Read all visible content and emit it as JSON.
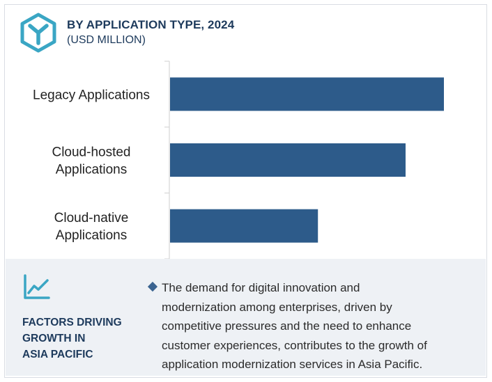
{
  "header": {
    "title": "BY APPLICATION TYPE, 2024",
    "subtitle": "(USD MILLION)",
    "logo_icon": "cube-y-logo-icon"
  },
  "colors": {
    "bar": "#2d5b8a",
    "title": "#1d3a5c",
    "logo": "#3aa6c4",
    "panel_bg": "#eef1f5"
  },
  "chart_data": {
    "type": "bar",
    "orientation": "horizontal",
    "categories": [
      "Legacy Applications",
      "Cloud-hosted Applications",
      "Cloud-native Applications"
    ],
    "category_lines": [
      [
        "Legacy Applications"
      ],
      [
        "Cloud-hosted",
        "Applications"
      ],
      [
        "Cloud-native",
        "Applications"
      ]
    ],
    "values": [
      100,
      86,
      54
    ],
    "xlim": [
      0,
      100
    ],
    "grid": false,
    "legend": "none",
    "title": "BY APPLICATION TYPE, 2024",
    "xlabel": "",
    "ylabel": ""
  },
  "drivers": {
    "icon": "trend-line-icon",
    "heading_lines": [
      "FACTORS DRIVING",
      "GROWTH IN",
      "ASIA PACIFIC"
    ],
    "bullet_icon": "diamond-bullet-icon",
    "text_lines": [
      "The demand for digital innovation and",
      "modernization among enterprises, driven by",
      "competitive pressures and the need to enhance",
      "customer experiences, contributes to the growth of",
      "application modernization services in Asia Pacific."
    ]
  }
}
